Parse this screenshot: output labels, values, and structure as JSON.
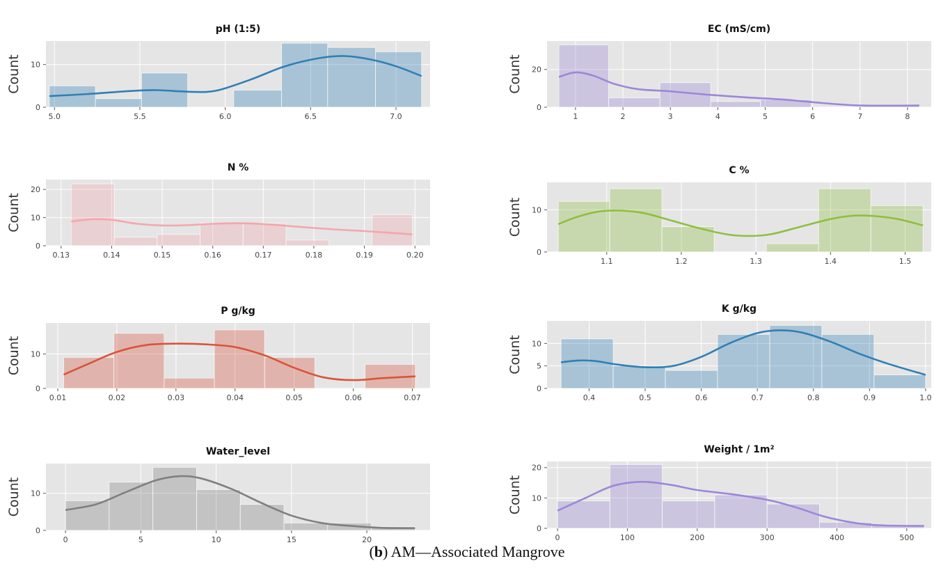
{
  "caption": {
    "label": "b",
    "text": "AM—Associated Mangrove"
  },
  "chart_data": [
    {
      "type": "bar",
      "subtype": "histogram-with-kde",
      "title": "pH (1:5)",
      "ylabel": "Count",
      "color": "#2f7fb5",
      "xlim": [
        4.95,
        7.2
      ],
      "ylim": [
        0,
        15.5
      ],
      "xticks": [
        5.0,
        5.5,
        6.0,
        6.5,
        7.0
      ],
      "xtick_labels": [
        "5.0",
        "5.5",
        "6.0",
        "6.5",
        "7.0"
      ],
      "yticks": [
        0,
        10
      ],
      "ytick_labels": [
        "0",
        "10"
      ],
      "bins": [
        [
          4.97,
          5.24,
          5
        ],
        [
          5.24,
          5.51,
          2
        ],
        [
          5.51,
          5.78,
          8
        ],
        [
          5.78,
          6.05,
          0
        ],
        [
          6.05,
          6.33,
          4
        ],
        [
          6.33,
          6.6,
          15
        ],
        [
          6.6,
          6.88,
          14
        ],
        [
          6.88,
          7.15,
          13
        ]
      ],
      "kde": [
        [
          4.97,
          2.6
        ],
        [
          5.2,
          3.1
        ],
        [
          5.45,
          3.8
        ],
        [
          5.6,
          4.0
        ],
        [
          5.8,
          3.6
        ],
        [
          5.95,
          3.9
        ],
        [
          6.15,
          6.5
        ],
        [
          6.35,
          9.6
        ],
        [
          6.55,
          11.5
        ],
        [
          6.7,
          12.0
        ],
        [
          6.85,
          11.2
        ],
        [
          7.0,
          9.6
        ],
        [
          7.15,
          7.3
        ]
      ]
    },
    {
      "type": "bar",
      "subtype": "histogram-with-kde",
      "title": "EC (mS/cm)",
      "ylabel": "Count",
      "color": "#9b87d8",
      "xlim": [
        0.4,
        8.5
      ],
      "ylim": [
        0,
        35
      ],
      "xticks": [
        1,
        2,
        3,
        4,
        5,
        6,
        7,
        8
      ],
      "xtick_labels": [
        "1",
        "2",
        "3",
        "4",
        "5",
        "6",
        "7",
        "8"
      ],
      "yticks": [
        0,
        20
      ],
      "ytick_labels": [
        "0",
        "20"
      ],
      "bins": [
        [
          0.65,
          1.7,
          33
        ],
        [
          1.7,
          2.78,
          5
        ],
        [
          2.78,
          3.85,
          13
        ],
        [
          3.85,
          4.9,
          3
        ],
        [
          4.9,
          5.97,
          4
        ],
        [
          5.97,
          7.05,
          0
        ],
        [
          7.05,
          8.25,
          1
        ]
      ],
      "kde": [
        [
          0.65,
          16
        ],
        [
          0.9,
          18
        ],
        [
          1.1,
          18.3
        ],
        [
          1.4,
          16.5
        ],
        [
          1.8,
          12.5
        ],
        [
          2.3,
          9.6
        ],
        [
          3.0,
          8.4
        ],
        [
          3.8,
          6.6
        ],
        [
          4.6,
          5.2
        ],
        [
          5.4,
          4.0
        ],
        [
          6.2,
          2.2
        ],
        [
          6.9,
          1.0
        ],
        [
          7.5,
          0.8
        ],
        [
          8.25,
          0.9
        ]
      ]
    },
    {
      "type": "bar",
      "subtype": "histogram-with-kde",
      "title": "N %",
      "ylabel": "Count",
      "color": "#f4a6ad",
      "xlim": [
        0.127,
        0.203
      ],
      "ylim": [
        0,
        23.5
      ],
      "xticks": [
        0.13,
        0.14,
        0.15,
        0.16,
        0.17,
        0.18,
        0.19,
        0.2
      ],
      "xtick_labels": [
        "0.13",
        "0.14",
        "0.15",
        "0.16",
        "0.17",
        "0.18",
        "0.19",
        "0.20"
      ],
      "yticks": [
        0,
        10,
        20
      ],
      "ytick_labels": [
        "0",
        "10",
        "20"
      ],
      "bins": [
        [
          0.132,
          0.1405,
          22
        ],
        [
          0.1405,
          0.149,
          3
        ],
        [
          0.149,
          0.1575,
          4
        ],
        [
          0.1575,
          0.166,
          8
        ],
        [
          0.166,
          0.1745,
          8
        ],
        [
          0.1745,
          0.183,
          2
        ],
        [
          0.183,
          0.1915,
          0
        ],
        [
          0.1915,
          0.1995,
          11
        ]
      ],
      "kde": [
        [
          0.132,
          8.6
        ],
        [
          0.136,
          9.4
        ],
        [
          0.14,
          9.2
        ],
        [
          0.145,
          7.8
        ],
        [
          0.15,
          7.2
        ],
        [
          0.155,
          7.3
        ],
        [
          0.16,
          7.8
        ],
        [
          0.165,
          8.0
        ],
        [
          0.17,
          7.7
        ],
        [
          0.175,
          7.0
        ],
        [
          0.18,
          6.3
        ],
        [
          0.185,
          5.7
        ],
        [
          0.19,
          5.2
        ],
        [
          0.195,
          4.6
        ],
        [
          0.1995,
          4.0
        ]
      ]
    },
    {
      "type": "bar",
      "subtype": "histogram-with-kde",
      "title": "C %",
      "ylabel": "Count",
      "color": "#8fbf3f",
      "xlim": [
        1.02,
        1.535
      ],
      "ylim": [
        0,
        16.5
      ],
      "xticks": [
        1.1,
        1.2,
        1.3,
        1.4,
        1.5
      ],
      "xtick_labels": [
        "1.1",
        "1.2",
        "1.3",
        "1.4",
        "1.5"
      ],
      "yticks": [
        0,
        10
      ],
      "ytick_labels": [
        "0",
        "10"
      ],
      "bins": [
        [
          1.035,
          1.104,
          12
        ],
        [
          1.104,
          1.174,
          15
        ],
        [
          1.174,
          1.244,
          6
        ],
        [
          1.244,
          1.314,
          0
        ],
        [
          1.314,
          1.384,
          2
        ],
        [
          1.384,
          1.454,
          15
        ],
        [
          1.454,
          1.524,
          11
        ]
      ],
      "kde": [
        [
          1.035,
          6.6
        ],
        [
          1.06,
          8.3
        ],
        [
          1.09,
          9.6
        ],
        [
          1.12,
          9.8
        ],
        [
          1.15,
          9.2
        ],
        [
          1.18,
          7.8
        ],
        [
          1.22,
          5.8
        ],
        [
          1.26,
          4.2
        ],
        [
          1.29,
          3.8
        ],
        [
          1.32,
          4.2
        ],
        [
          1.36,
          6.0
        ],
        [
          1.4,
          7.8
        ],
        [
          1.43,
          8.6
        ],
        [
          1.46,
          8.5
        ],
        [
          1.49,
          7.8
        ],
        [
          1.524,
          6.3
        ]
      ]
    },
    {
      "type": "bar",
      "subtype": "histogram-with-kde",
      "title": "P g/kg",
      "ylabel": "Count",
      "color": "#d9533a",
      "xlim": [
        0.008,
        0.073
      ],
      "ylim": [
        0,
        19
      ],
      "xticks": [
        0.01,
        0.02,
        0.03,
        0.04,
        0.05,
        0.06,
        0.07
      ],
      "xtick_labels": [
        "0.01",
        "0.02",
        "0.03",
        "0.04",
        "0.05",
        "0.06",
        "0.07"
      ],
      "yticks": [
        0,
        10
      ],
      "ytick_labels": [
        "0",
        "10"
      ],
      "bins": [
        [
          0.011,
          0.0195,
          9
        ],
        [
          0.0195,
          0.028,
          16
        ],
        [
          0.028,
          0.0365,
          3
        ],
        [
          0.0365,
          0.045,
          17
        ],
        [
          0.045,
          0.0535,
          9
        ],
        [
          0.0535,
          0.062,
          0
        ],
        [
          0.062,
          0.0705,
          7
        ]
      ],
      "kde": [
        [
          0.011,
          4.0
        ],
        [
          0.015,
          7.0
        ],
        [
          0.02,
          10.6
        ],
        [
          0.025,
          12.6
        ],
        [
          0.03,
          13.0
        ],
        [
          0.035,
          12.8
        ],
        [
          0.04,
          12.0
        ],
        [
          0.045,
          9.6
        ],
        [
          0.05,
          6.0
        ],
        [
          0.055,
          3.2
        ],
        [
          0.06,
          2.4
        ],
        [
          0.065,
          3.0
        ],
        [
          0.0705,
          3.5
        ]
      ]
    },
    {
      "type": "bar",
      "subtype": "histogram-with-kde",
      "title": "K g/kg",
      "ylabel": "Count",
      "color": "#2f7fb5",
      "xlim": [
        0.325,
        1.01
      ],
      "ylim": [
        0,
        15
      ],
      "xticks": [
        0.4,
        0.5,
        0.6,
        0.7,
        0.8,
        0.9,
        1.0
      ],
      "xtick_labels": [
        "0.4",
        "0.5",
        "0.6",
        "0.7",
        "0.8",
        "0.9",
        "1.0"
      ],
      "yticks": [
        0,
        5,
        10
      ],
      "ytick_labels": [
        "0",
        "5",
        "10"
      ],
      "bins": [
        [
          0.35,
          0.443,
          11
        ],
        [
          0.443,
          0.536,
          5
        ],
        [
          0.536,
          0.629,
          4
        ],
        [
          0.629,
          0.722,
          12
        ],
        [
          0.722,
          0.815,
          14
        ],
        [
          0.815,
          0.908,
          12
        ],
        [
          0.908,
          1.0,
          3
        ]
      ],
      "kde": [
        [
          0.35,
          5.8
        ],
        [
          0.38,
          6.2
        ],
        [
          0.41,
          6.1
        ],
        [
          0.45,
          5.3
        ],
        [
          0.5,
          4.7
        ],
        [
          0.55,
          5.0
        ],
        [
          0.6,
          7.0
        ],
        [
          0.65,
          10.0
        ],
        [
          0.7,
          12.3
        ],
        [
          0.74,
          12.9
        ],
        [
          0.78,
          12.4
        ],
        [
          0.83,
          10.4
        ],
        [
          0.88,
          7.8
        ],
        [
          0.93,
          5.6
        ],
        [
          1.0,
          3.0
        ]
      ]
    },
    {
      "type": "bar",
      "subtype": "histogram-with-kde",
      "title": "Water_level",
      "ylabel": "Count",
      "color": "#7f7f7f",
      "xlim": [
        -1.3,
        24.2
      ],
      "ylim": [
        0,
        18
      ],
      "xticks": [
        0,
        5,
        10,
        15,
        20
      ],
      "xtick_labels": [
        "0",
        "5",
        "10",
        "15",
        "20"
      ],
      "yticks": [
        0,
        10
      ],
      "ytick_labels": [
        "0",
        "10"
      ],
      "bins": [
        [
          0,
          2.9,
          8
        ],
        [
          2.9,
          5.8,
          13
        ],
        [
          5.8,
          8.7,
          17
        ],
        [
          8.7,
          11.6,
          11
        ],
        [
          11.6,
          14.5,
          7
        ],
        [
          14.5,
          17.4,
          2
        ],
        [
          17.4,
          20.3,
          2
        ],
        [
          20.3,
          23.2,
          1
        ]
      ],
      "kde": [
        [
          0,
          5.5
        ],
        [
          2,
          7.0
        ],
        [
          4,
          10.3
        ],
        [
          6,
          13.5
        ],
        [
          7.6,
          14.6
        ],
        [
          9,
          14.0
        ],
        [
          11,
          11.2
        ],
        [
          13,
          7.4
        ],
        [
          15,
          4.0
        ],
        [
          17,
          2.0
        ],
        [
          19,
          1.2
        ],
        [
          21,
          0.7
        ],
        [
          23.2,
          0.6
        ]
      ]
    },
    {
      "type": "bar",
      "subtype": "histogram-with-kde",
      "title": "Weight / 1m²",
      "ylabel": "Count",
      "color": "#9b87d8",
      "xlim": [
        -15,
        535
      ],
      "ylim": [
        0,
        22
      ],
      "xticks": [
        0,
        100,
        200,
        300,
        400,
        500
      ],
      "xtick_labels": [
        "0",
        "100",
        "200",
        "300",
        "400",
        "500"
      ],
      "yticks": [
        0,
        10,
        20
      ],
      "ytick_labels": [
        "0",
        "10",
        "20"
      ],
      "bins": [
        [
          0,
          75,
          9
        ],
        [
          75,
          150,
          21
        ],
        [
          150,
          225,
          9
        ],
        [
          225,
          300,
          11
        ],
        [
          300,
          375,
          8
        ],
        [
          375,
          450,
          2
        ],
        [
          450,
          525,
          1
        ]
      ],
      "kde": [
        [
          0,
          5.8
        ],
        [
          40,
          10.0
        ],
        [
          80,
          14.0
        ],
        [
          120,
          15.3
        ],
        [
          160,
          14.4
        ],
        [
          200,
          12.6
        ],
        [
          250,
          11.2
        ],
        [
          300,
          9.4
        ],
        [
          340,
          7.0
        ],
        [
          380,
          4.0
        ],
        [
          420,
          2.0
        ],
        [
          460,
          1.0
        ],
        [
          525,
          0.8
        ]
      ]
    }
  ]
}
